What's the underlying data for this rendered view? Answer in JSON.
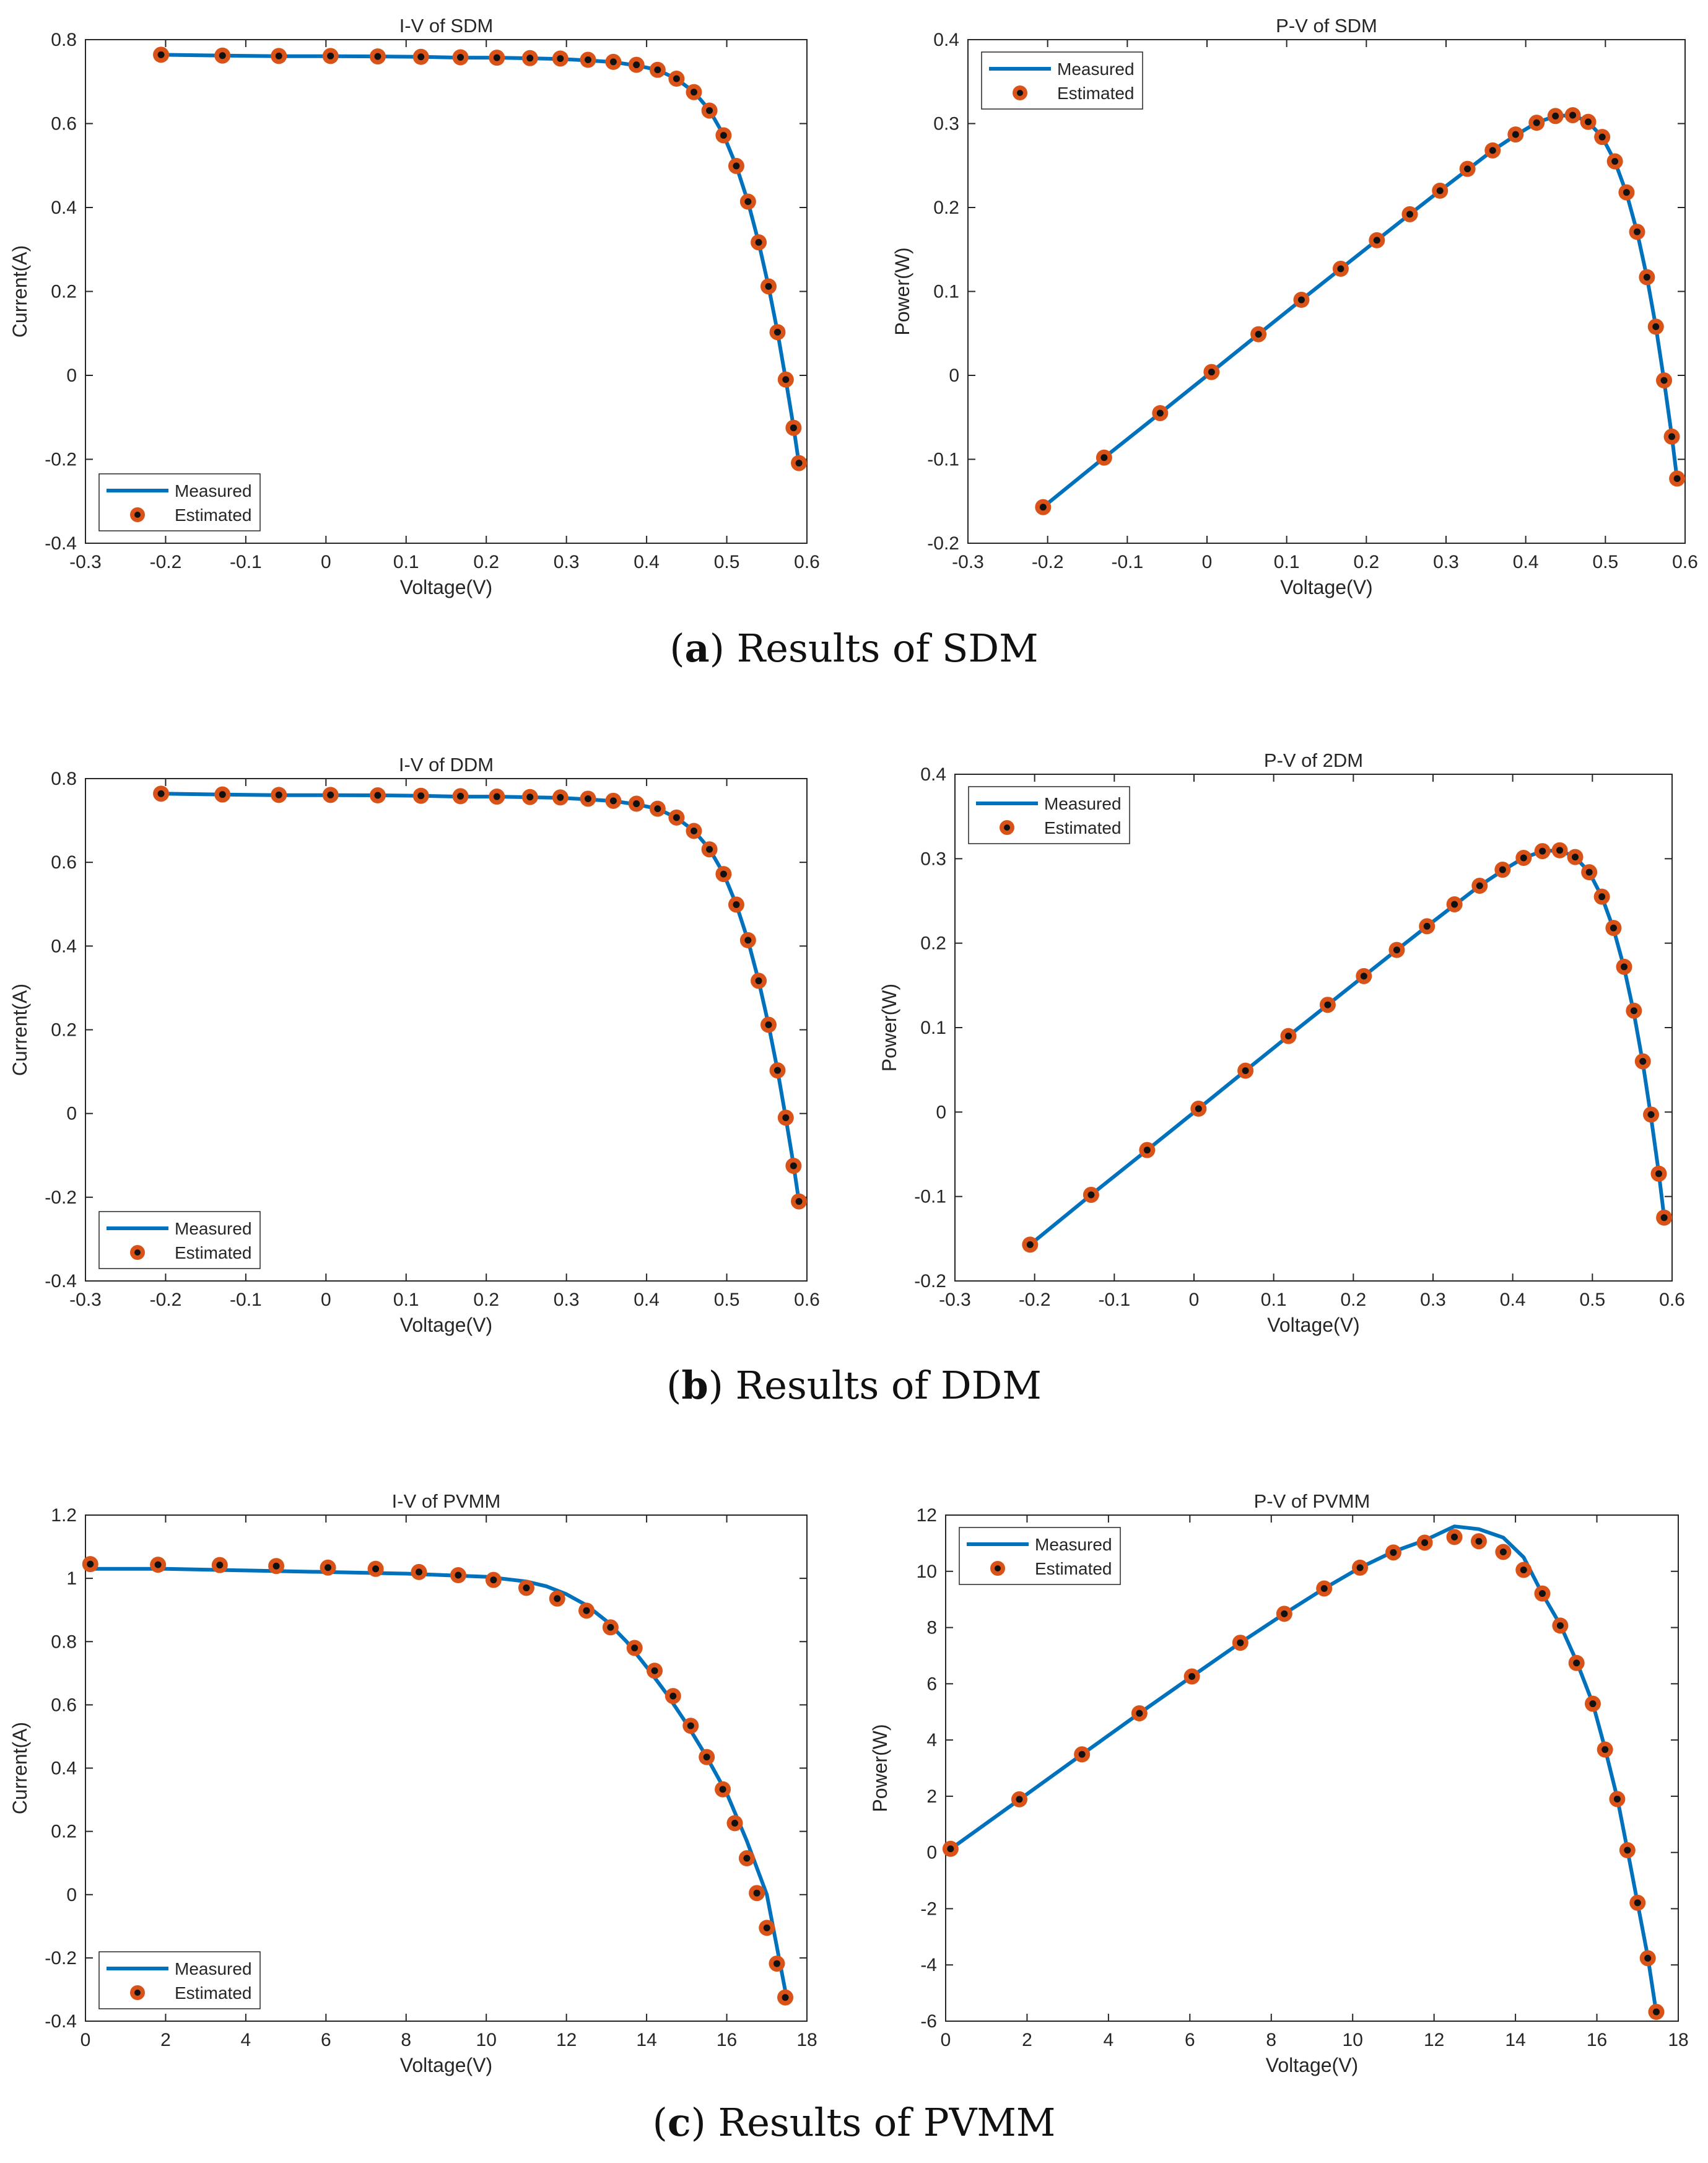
{
  "colors": {
    "line": "#0072BD",
    "marker_fill": "#D95319",
    "marker_center": "#111111",
    "axis": "#262626",
    "background": "#ffffff"
  },
  "captions": {
    "a": {
      "letter": "a",
      "text": "Results of SDM"
    },
    "b": {
      "letter": "b",
      "text": "Results of DDM"
    },
    "c": {
      "letter": "c",
      "text": "Results of PVMM"
    }
  },
  "chart_data": [
    {
      "id": "iv-sdm",
      "type": "line",
      "title": "I-V of SDM",
      "xlabel": "Voltage(V)",
      "ylabel": "Current(A)",
      "xlim": [
        -0.3,
        0.6
      ],
      "ylim": [
        -0.4,
        0.8
      ],
      "xticks": [
        "-0.3",
        "-0.2",
        "-0.1",
        "0",
        "0.1",
        "0.2",
        "0.3",
        "0.4",
        "0.5",
        "0.6"
      ],
      "yticks": [
        "-0.4",
        "-0.2",
        "0",
        "0.2",
        "0.4",
        "0.6",
        "0.8"
      ],
      "legend": {
        "position": "bottom-left",
        "entries": [
          "Measured",
          "Estimated"
        ]
      },
      "series": [
        {
          "name": "Measured",
          "x": [
            -0.2057,
            -0.1291,
            -0.0588,
            0.0057,
            0.0646,
            0.1185,
            0.1678,
            0.2132,
            0.2545,
            0.2924,
            0.3269,
            0.3585,
            0.3873,
            0.4137,
            0.4373,
            0.459,
            0.4784,
            0.496,
            0.5119,
            0.5265,
            0.5398,
            0.5521,
            0.5633,
            0.5736,
            0.5833,
            0.59
          ],
          "y": [
            0.764,
            0.762,
            0.7605,
            0.7605,
            0.76,
            0.759,
            0.757,
            0.757,
            0.7555,
            0.754,
            0.7505,
            0.7465,
            0.7385,
            0.728,
            0.7065,
            0.6755,
            0.632,
            0.573,
            0.499,
            0.413,
            0.3165,
            0.212,
            0.1035,
            -0.01,
            -0.123,
            -0.21
          ]
        },
        {
          "name": "Estimated",
          "x": [
            -0.2057,
            -0.1291,
            -0.0588,
            0.0057,
            0.0646,
            0.1185,
            0.1678,
            0.2132,
            0.2545,
            0.2924,
            0.3269,
            0.3585,
            0.3873,
            0.4137,
            0.4373,
            0.459,
            0.4784,
            0.496,
            0.5119,
            0.5265,
            0.5398,
            0.5521,
            0.5633,
            0.5736,
            0.5833,
            0.59
          ],
          "y": [
            0.764,
            0.762,
            0.761,
            0.761,
            0.76,
            0.759,
            0.758,
            0.757,
            0.756,
            0.755,
            0.752,
            0.747,
            0.74,
            0.728,
            0.707,
            0.675,
            0.631,
            0.572,
            0.499,
            0.414,
            0.317,
            0.212,
            0.103,
            -0.01,
            -0.125,
            -0.209
          ]
        }
      ]
    },
    {
      "id": "pv-sdm",
      "type": "line",
      "title": "P-V of SDM",
      "xlabel": "Voltage(V)",
      "ylabel": "Power(W)",
      "xlim": [
        -0.3,
        0.6
      ],
      "ylim": [
        -0.2,
        0.4
      ],
      "xticks": [
        "-0.3",
        "-0.2",
        "-0.1",
        "0",
        "0.1",
        "0.2",
        "0.3",
        "0.4",
        "0.5",
        "0.6"
      ],
      "yticks": [
        "-0.2",
        "-0.1",
        "0",
        "0.1",
        "0.2",
        "0.3",
        "0.4"
      ],
      "legend": {
        "position": "top-left",
        "entries": [
          "Measured",
          "Estimated"
        ]
      },
      "series": [
        {
          "name": "Measured",
          "x": [
            -0.2057,
            -0.1291,
            -0.0588,
            0.0057,
            0.0646,
            0.1185,
            0.1678,
            0.2132,
            0.2545,
            0.2924,
            0.3269,
            0.3585,
            0.3873,
            0.4137,
            0.4373,
            0.459,
            0.4784,
            0.496,
            0.5119,
            0.5265,
            0.5398,
            0.5521,
            0.5633,
            0.5736,
            0.5833,
            0.59
          ],
          "y": [
            -0.157,
            -0.098,
            -0.045,
            0.004,
            0.049,
            0.09,
            0.127,
            0.161,
            0.192,
            0.22,
            0.245,
            0.268,
            0.286,
            0.301,
            0.309,
            0.31,
            0.302,
            0.284,
            0.255,
            0.217,
            0.171,
            0.117,
            0.058,
            -0.006,
            -0.072,
            -0.124
          ]
        },
        {
          "name": "Estimated",
          "x": [
            -0.2057,
            -0.1291,
            -0.0588,
            0.0057,
            0.0646,
            0.1185,
            0.1678,
            0.2132,
            0.2545,
            0.2924,
            0.3269,
            0.3585,
            0.3873,
            0.4137,
            0.4373,
            0.459,
            0.4784,
            0.496,
            0.5119,
            0.5265,
            0.5398,
            0.5521,
            0.5633,
            0.5736,
            0.5833,
            0.59
          ],
          "y": [
            -0.157,
            -0.098,
            -0.045,
            0.004,
            0.049,
            0.09,
            0.127,
            0.161,
            0.192,
            0.22,
            0.246,
            0.268,
            0.287,
            0.301,
            0.309,
            0.31,
            0.302,
            0.284,
            0.255,
            0.218,
            0.171,
            0.117,
            0.058,
            -0.006,
            -0.073,
            -0.123
          ]
        }
      ]
    },
    {
      "id": "iv-ddm",
      "type": "line",
      "title": "I-V of DDM",
      "xlabel": "Voltage(V)",
      "ylabel": "Current(A)",
      "xlim": [
        -0.3,
        0.6
      ],
      "ylim": [
        -0.4,
        0.8
      ],
      "xticks": [
        "-0.3",
        "-0.2",
        "-0.1",
        "0",
        "0.1",
        "0.2",
        "0.3",
        "0.4",
        "0.5",
        "0.6"
      ],
      "yticks": [
        "-0.4",
        "-0.2",
        "0",
        "0.2",
        "0.4",
        "0.6",
        "0.8"
      ],
      "legend": {
        "position": "bottom-left",
        "entries": [
          "Measured",
          "Estimated"
        ]
      },
      "series": [
        {
          "name": "Measured",
          "x": [
            -0.2057,
            -0.1291,
            -0.0588,
            0.0057,
            0.0646,
            0.1185,
            0.1678,
            0.2132,
            0.2545,
            0.2924,
            0.3269,
            0.3585,
            0.3873,
            0.4137,
            0.4373,
            0.459,
            0.4784,
            0.496,
            0.5119,
            0.5265,
            0.5398,
            0.5521,
            0.5633,
            0.5736,
            0.5833,
            0.59
          ],
          "y": [
            0.764,
            0.762,
            0.7605,
            0.7605,
            0.76,
            0.759,
            0.757,
            0.757,
            0.7555,
            0.754,
            0.7505,
            0.7465,
            0.7385,
            0.728,
            0.7065,
            0.6755,
            0.632,
            0.573,
            0.499,
            0.413,
            0.3165,
            0.212,
            0.1035,
            -0.01,
            -0.123,
            -0.21
          ]
        },
        {
          "name": "Estimated",
          "x": [
            -0.2057,
            -0.1291,
            -0.0588,
            0.0057,
            0.0646,
            0.1185,
            0.1678,
            0.2132,
            0.2545,
            0.2924,
            0.3269,
            0.3585,
            0.3873,
            0.4137,
            0.4373,
            0.459,
            0.4784,
            0.496,
            0.5119,
            0.5265,
            0.5398,
            0.5521,
            0.5633,
            0.5736,
            0.5833,
            0.59
          ],
          "y": [
            0.764,
            0.762,
            0.761,
            0.761,
            0.76,
            0.759,
            0.758,
            0.757,
            0.756,
            0.755,
            0.752,
            0.747,
            0.74,
            0.728,
            0.707,
            0.675,
            0.631,
            0.572,
            0.499,
            0.414,
            0.317,
            0.212,
            0.103,
            -0.01,
            -0.125,
            -0.21
          ]
        }
      ]
    },
    {
      "id": "pv-ddm",
      "type": "line",
      "title": "P-V of 2DM",
      "xlabel": "Voltage(V)",
      "ylabel": "Power(W)",
      "xlim": [
        -0.3,
        0.6
      ],
      "ylim": [
        -0.2,
        0.4
      ],
      "xticks": [
        "-0.3",
        "-0.2",
        "-0.1",
        "0",
        "0.1",
        "0.2",
        "0.3",
        "0.4",
        "0.5",
        "0.6"
      ],
      "yticks": [
        "-0.2",
        "-0.1",
        "0",
        "0.1",
        "0.2",
        "0.3",
        "0.4"
      ],
      "legend": {
        "position": "top-left",
        "entries": [
          "Measured",
          "Estimated"
        ]
      },
      "series": [
        {
          "name": "Measured",
          "x": [
            -0.2057,
            -0.1291,
            -0.0588,
            0.0057,
            0.0646,
            0.1185,
            0.1678,
            0.2132,
            0.2545,
            0.2924,
            0.3269,
            0.3585,
            0.3873,
            0.4137,
            0.4373,
            0.459,
            0.4784,
            0.496,
            0.5119,
            0.5265,
            0.5398,
            0.5521,
            0.5633,
            0.5736,
            0.5833,
            0.59
          ],
          "y": [
            -0.157,
            -0.098,
            -0.045,
            0.004,
            0.049,
            0.09,
            0.127,
            0.161,
            0.192,
            0.22,
            0.245,
            0.268,
            0.286,
            0.301,
            0.309,
            0.31,
            0.302,
            0.284,
            0.255,
            0.217,
            0.171,
            0.117,
            0.058,
            -0.006,
            -0.072,
            -0.124
          ]
        },
        {
          "name": "Estimated",
          "x": [
            -0.2057,
            -0.1291,
            -0.0588,
            0.0057,
            0.0646,
            0.1185,
            0.1678,
            0.2132,
            0.2545,
            0.2924,
            0.3269,
            0.3585,
            0.3873,
            0.4137,
            0.4373,
            0.459,
            0.4784,
            0.496,
            0.5119,
            0.5265,
            0.5398,
            0.5521,
            0.5633,
            0.5736,
            0.5833,
            0.59
          ],
          "y": [
            -0.157,
            -0.098,
            -0.045,
            0.004,
            0.049,
            0.09,
            0.127,
            0.161,
            0.192,
            0.22,
            0.246,
            0.268,
            0.287,
            0.301,
            0.309,
            0.31,
            0.302,
            0.284,
            0.255,
            0.218,
            0.172,
            0.12,
            0.06,
            -0.003,
            -0.073,
            -0.125
          ]
        }
      ]
    },
    {
      "id": "iv-pvmm",
      "type": "line",
      "title": "I-V of PVMM",
      "xlabel": "Voltage(V)",
      "ylabel": "Current(A)",
      "xlim": [
        0,
        18
      ],
      "ylim": [
        -0.4,
        1.2
      ],
      "xticks": [
        "0",
        "2",
        "4",
        "6",
        "8",
        "10",
        "12",
        "14",
        "16",
        "18"
      ],
      "yticks": [
        "-0.4",
        "-0.2",
        "0",
        "0.2",
        "0.4",
        "0.6",
        "0.8",
        "1",
        "1.2"
      ],
      "legend": {
        "position": "bottom-left",
        "entries": [
          "Measured",
          "Estimated"
        ]
      },
      "series": [
        {
          "name": "Measured",
          "x": [
            0,
            2,
            4,
            6,
            8,
            10,
            11,
            11.5,
            12,
            12.5,
            13,
            13.5,
            14,
            14.5,
            15,
            15.5,
            16,
            16.5,
            17,
            17.5
          ],
          "y": [
            1.03,
            1.03,
            1.025,
            1.02,
            1.015,
            1.005,
            0.99,
            0.975,
            0.95,
            0.915,
            0.865,
            0.8,
            0.72,
            0.635,
            0.54,
            0.435,
            0.32,
            0.17,
            0.0,
            -0.33
          ]
        },
        {
          "name": "Estimated",
          "x": [
            0.12,
            1.81,
            3.35,
            4.76,
            6.05,
            7.24,
            8.32,
            9.3,
            10.18,
            11,
            11.77,
            12.5,
            13.1,
            13.7,
            14.2,
            14.66,
            15.1,
            15.5,
            15.9,
            16.2,
            16.5,
            16.75,
            17,
            17.25,
            17.46
          ],
          "y": [
            1.045,
            1.043,
            1.042,
            1.039,
            1.034,
            1.03,
            1.02,
            1.01,
            0.995,
            0.97,
            0.936,
            0.898,
            0.845,
            0.78,
            0.708,
            0.628,
            0.534,
            0.435,
            0.333,
            0.226,
            0.115,
            0.005,
            -0.105,
            -0.218,
            -0.325
          ]
        }
      ]
    },
    {
      "id": "pv-pvmm",
      "type": "line",
      "title": "P-V of PVMM",
      "xlabel": "Voltage(V)",
      "ylabel": "Power(W)",
      "xlim": [
        0,
        18
      ],
      "ylim": [
        -6,
        12
      ],
      "xticks": [
        "0",
        "2",
        "4",
        "6",
        "8",
        "10",
        "12",
        "14",
        "16",
        "18"
      ],
      "yticks": [
        "-6",
        "-4",
        "-2",
        "0",
        "2",
        "4",
        "6",
        "8",
        "10",
        "12"
      ],
      "legend": {
        "position": "top-left",
        "entries": [
          "Measured",
          "Estimated"
        ]
      },
      "series": [
        {
          "name": "Measured",
          "x": [
            0.12,
            1.81,
            3.35,
            4.76,
            6.05,
            7.24,
            8.32,
            9.3,
            10.18,
            11,
            11.77,
            12.5,
            13.1,
            13.7,
            14.2,
            14.66,
            15.1,
            15.5,
            15.9,
            16.2,
            16.5,
            16.75,
            17,
            17.25,
            17.46
          ],
          "y": [
            0.12,
            1.88,
            3.49,
            4.95,
            6.26,
            7.46,
            8.49,
            9.39,
            10.13,
            10.7,
            11.1,
            11.6,
            11.5,
            11.2,
            10.5,
            9.2,
            8.1,
            6.8,
            5.3,
            3.7,
            1.95,
            0.1,
            -1.8,
            -3.7,
            -5.7
          ]
        },
        {
          "name": "Estimated",
          "x": [
            0.12,
            1.81,
            3.35,
            4.76,
            6.05,
            7.24,
            8.32,
            9.3,
            10.18,
            11,
            11.77,
            12.5,
            13.1,
            13.7,
            14.2,
            14.66,
            15.1,
            15.5,
            15.9,
            16.2,
            16.5,
            16.75,
            17,
            17.25,
            17.46
          ],
          "y": [
            0.13,
            1.89,
            3.49,
            4.95,
            6.26,
            7.46,
            8.49,
            9.39,
            10.13,
            10.67,
            11.02,
            11.22,
            11.07,
            10.69,
            10.05,
            9.21,
            8.07,
            6.74,
            5.29,
            3.66,
            1.9,
            0.08,
            -1.79,
            -3.76,
            -5.67
          ]
        }
      ]
    }
  ]
}
